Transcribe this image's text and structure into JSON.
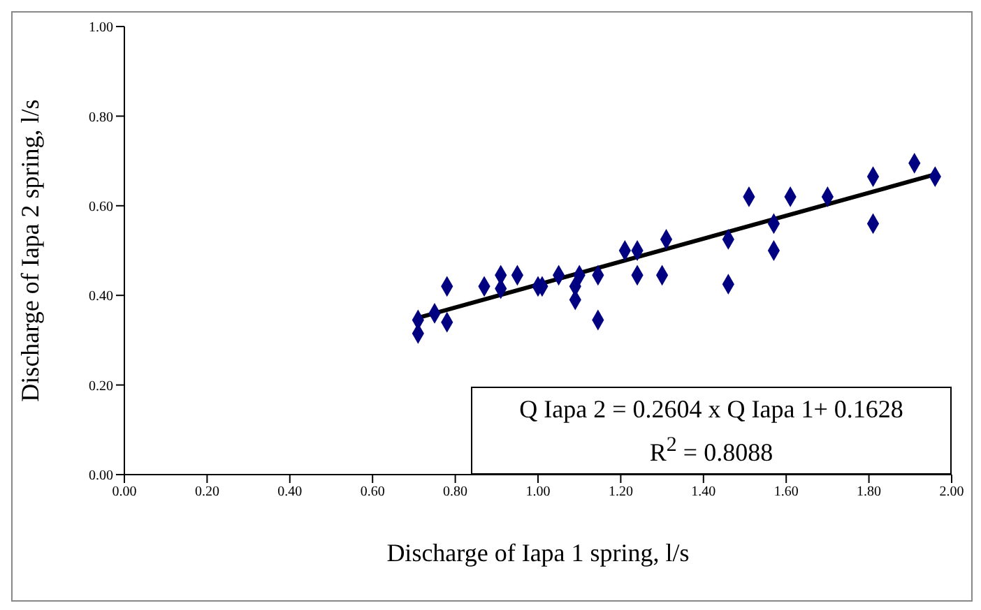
{
  "chart_data": {
    "type": "scatter",
    "xlabel": "Discharge of Iapa 1 spring, l/s",
    "ylabel": "Discharge of Iapa 2 spring, l/s",
    "xlim": [
      0,
      2
    ],
    "ylim": [
      0,
      1
    ],
    "xticks": [
      {
        "value": 0,
        "label": "0.00"
      },
      {
        "value": 0.2,
        "label": "0.20"
      },
      {
        "value": 0.4,
        "label": "0.40"
      },
      {
        "value": 0.6,
        "label": "0.60"
      },
      {
        "value": 0.8,
        "label": "0.80"
      },
      {
        "value": 1,
        "label": "1.00"
      },
      {
        "value": 1.2,
        "label": "1.20"
      },
      {
        "value": 1.4,
        "label": "1.40"
      },
      {
        "value": 1.6,
        "label": "1.60"
      },
      {
        "value": 1.8,
        "label": "1.80"
      },
      {
        "value": 2,
        "label": "2.00"
      }
    ],
    "yticks": [
      {
        "value": 0,
        "label": "0.00"
      },
      {
        "value": 0.2,
        "label": "0.20"
      },
      {
        "value": 0.4,
        "label": "0.40"
      },
      {
        "value": 0.6,
        "label": "0.60"
      },
      {
        "value": 0.8,
        "label": "0.80"
      },
      {
        "value": 1,
        "label": "1.00"
      }
    ],
    "grid": false,
    "legend": false,
    "marker": "diamond",
    "series": [
      {
        "color": "#000080",
        "x": [
          0.71,
          0.71,
          0.75,
          0.78,
          0.78,
          0.87,
          0.91,
          0.91,
          0.95,
          1.0,
          1.01,
          1.05,
          1.09,
          1.09,
          1.1,
          1.145,
          1.145,
          1.21,
          1.24,
          1.24,
          1.3,
          1.31,
          1.46,
          1.46,
          1.51,
          1.57,
          1.57,
          1.61,
          1.7,
          1.81,
          1.81,
          1.91,
          1.96
        ],
        "values": [
          0.345,
          0.315,
          0.36,
          0.34,
          0.42,
          0.42,
          0.445,
          0.415,
          0.445,
          0.42,
          0.42,
          0.445,
          0.42,
          0.39,
          0.445,
          0.445,
          0.345,
          0.5,
          0.5,
          0.445,
          0.445,
          0.525,
          0.525,
          0.425,
          0.62,
          0.56,
          0.5,
          0.62,
          0.62,
          0.665,
          0.56,
          0.695,
          0.665
        ]
      },
      {
        "type": "line",
        "color": "#000000",
        "marker": "none",
        "x": [
          0.71,
          1.96
        ],
        "values": [
          0.35,
          0.67
        ]
      }
    ],
    "annotations": [
      "Q Iapa 2 = 0.2604 x Q Iapa 1+ 0.1628",
      "R$^{2}$ = 0.8088"
    ]
  }
}
